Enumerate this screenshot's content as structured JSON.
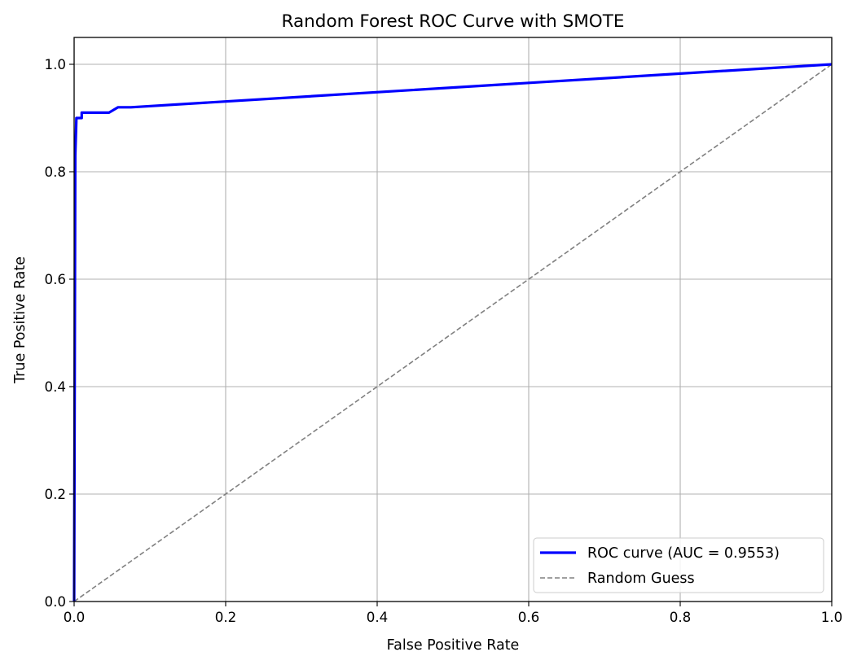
{
  "chart_data": {
    "type": "line",
    "title": "Random Forest ROC Curve with SMOTE",
    "xlabel": "False Positive Rate",
    "ylabel": "True Positive Rate",
    "xlim": [
      0.0,
      1.0
    ],
    "ylim": [
      0.0,
      1.05
    ],
    "xticks": [
      0.0,
      0.2,
      0.4,
      0.6,
      0.8,
      1.0
    ],
    "yticks": [
      0.0,
      0.2,
      0.4,
      0.6,
      0.8,
      1.0
    ],
    "xtick_labels": [
      "0.0",
      "0.2",
      "0.4",
      "0.6",
      "0.8",
      "1.0"
    ],
    "ytick_labels": [
      "0.0",
      "0.2",
      "0.4",
      "0.6",
      "0.8",
      "1.0"
    ],
    "grid": true,
    "legend_position": "lower-right",
    "series": [
      {
        "name": "ROC curve (AUC = 0.9553)",
        "color": "#0000ff",
        "style": "solid",
        "x": [
          0.0,
          0.0015,
          0.003,
          0.003,
          0.01,
          0.01,
          0.046,
          0.058,
          0.075,
          1.0
        ],
        "y": [
          0.0,
          0.83,
          0.9,
          0.9,
          0.9,
          0.91,
          0.91,
          0.92,
          0.92,
          1.0
        ]
      },
      {
        "name": "Random Guess",
        "color": "#808080",
        "style": "dashed",
        "x": [
          0.0,
          1.0
        ],
        "y": [
          0.0,
          1.0
        ]
      }
    ]
  }
}
